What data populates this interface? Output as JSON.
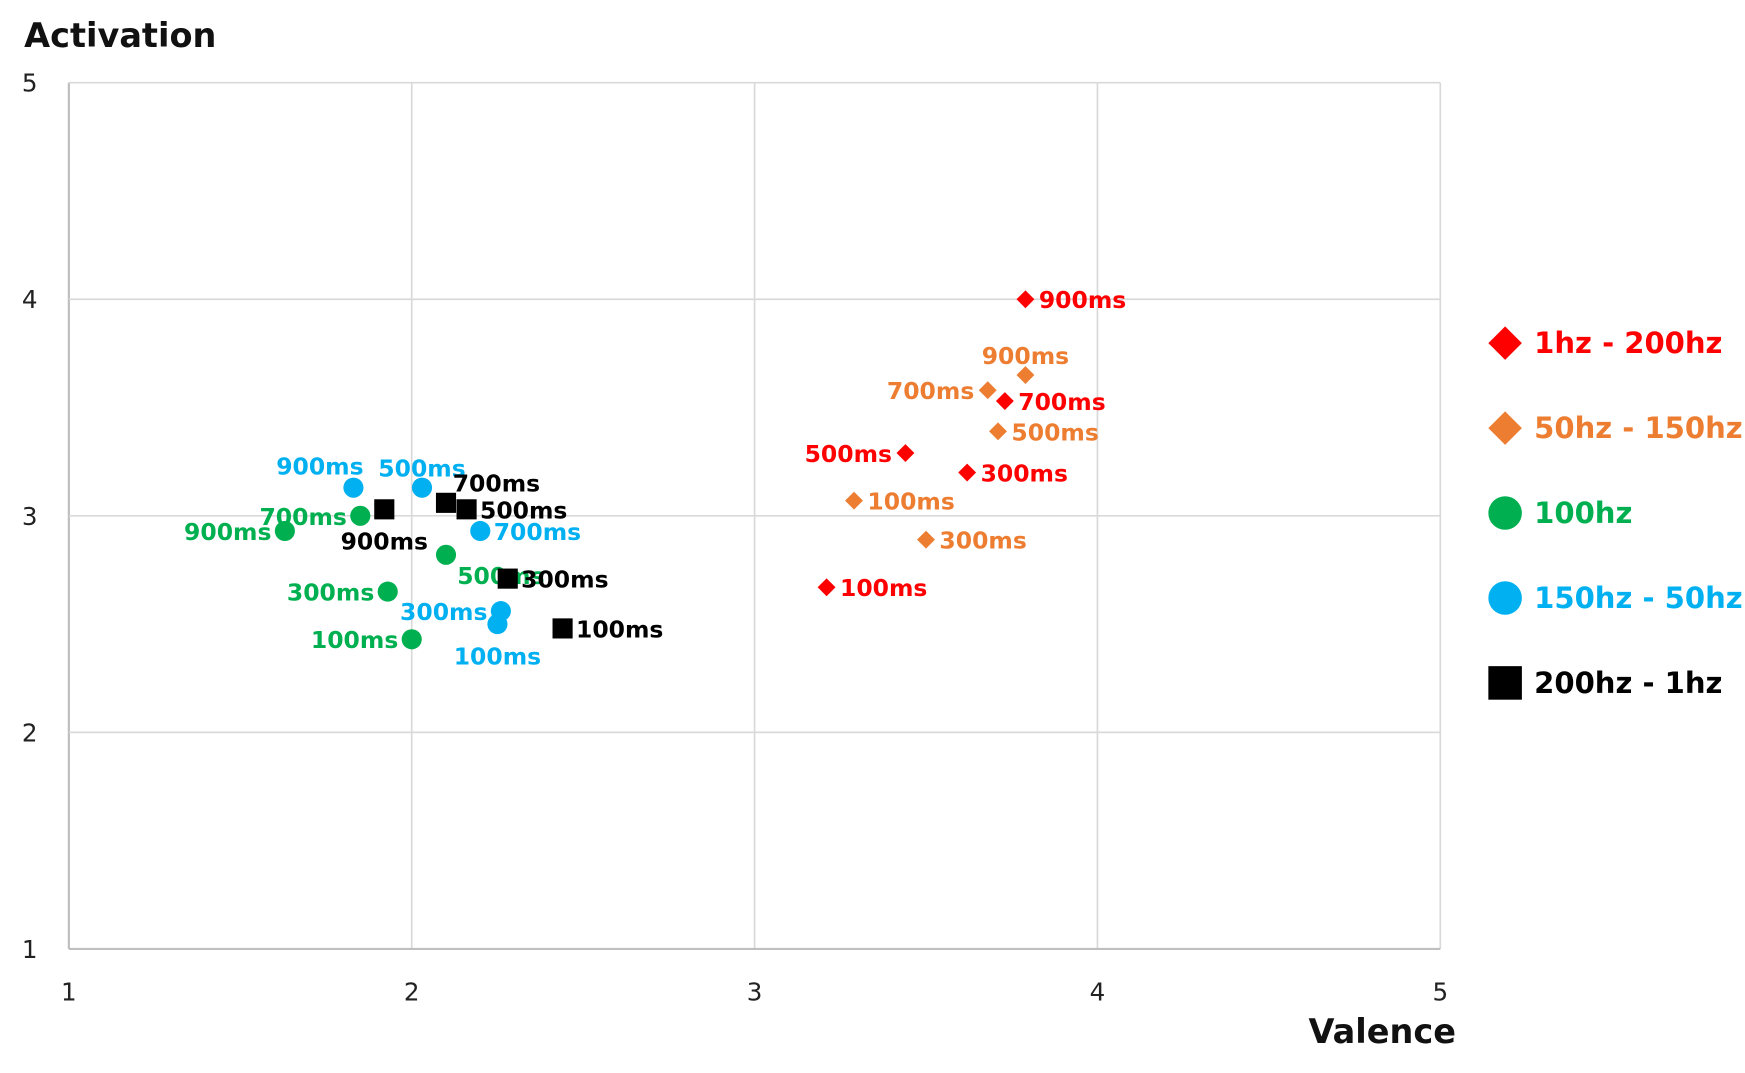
{
  "chart_data": {
    "type": "scatter",
    "title": "",
    "xlabel": "Valence",
    "ylabel": "Activation",
    "xlim": [
      1,
      5
    ],
    "ylim": [
      1,
      5
    ],
    "xticks": [
      "1",
      "2",
      "3",
      "4",
      "5"
    ],
    "yticks": [
      "1",
      "2",
      "3",
      "4",
      "5"
    ],
    "grid": true,
    "legend_placement": "right",
    "series": [
      {
        "name": "1hz - 200hz",
        "color": "#ff0000",
        "marker": "diamond",
        "points": [
          {
            "x": 3.79,
            "y": 4.0,
            "label": "900ms",
            "pos": "right"
          },
          {
            "x": 3.73,
            "y": 3.53,
            "label": "700ms",
            "pos": "right"
          },
          {
            "x": 3.44,
            "y": 3.29,
            "label": "500ms",
            "pos": "left"
          },
          {
            "x": 3.62,
            "y": 3.2,
            "label": "300ms",
            "pos": "right"
          },
          {
            "x": 3.21,
            "y": 2.67,
            "label": "100ms",
            "pos": "right"
          }
        ]
      },
      {
        "name": "50hz - 150hz",
        "color": "#ed7d31",
        "marker": "diamond",
        "points": [
          {
            "x": 3.79,
            "y": 3.65,
            "label": "900ms",
            "pos": "above"
          },
          {
            "x": 3.68,
            "y": 3.58,
            "label": "700ms",
            "pos": "left"
          },
          {
            "x": 3.71,
            "y": 3.39,
            "label": "500ms",
            "pos": "right"
          },
          {
            "x": 3.29,
            "y": 3.07,
            "label": "100ms",
            "pos": "right"
          },
          {
            "x": 3.5,
            "y": 2.89,
            "label": "300ms",
            "pos": "right"
          }
        ]
      },
      {
        "name": "100hz",
        "color": "#00b050",
        "marker": "circle",
        "points": [
          {
            "x": 1.63,
            "y": 2.93,
            "label": "900ms",
            "pos": "left"
          },
          {
            "x": 1.85,
            "y": 3.0,
            "label": "700ms",
            "pos": "left"
          },
          {
            "x": 2.1,
            "y": 2.82,
            "label": "500ms",
            "pos": "right-below"
          },
          {
            "x": 1.93,
            "y": 2.65,
            "label": "300ms",
            "pos": "left"
          },
          {
            "x": 2.0,
            "y": 2.43,
            "label": "100ms",
            "pos": "left"
          }
        ]
      },
      {
        "name": "150hz - 50hz",
        "color": "#00b0f0",
        "marker": "circle",
        "points": [
          {
            "x": 1.83,
            "y": 3.13,
            "label": "900ms",
            "pos": "above-left"
          },
          {
            "x": 2.03,
            "y": 3.13,
            "label": "500ms",
            "pos": "above"
          },
          {
            "x": 2.2,
            "y": 2.93,
            "label": "700ms",
            "pos": "right"
          },
          {
            "x": 2.26,
            "y": 2.56,
            "label": "300ms",
            "pos": "left"
          },
          {
            "x": 2.25,
            "y": 2.5,
            "label": "100ms",
            "pos": "below"
          }
        ]
      },
      {
        "name": "200hz - 1hz",
        "color": "#000000",
        "marker": "square",
        "points": [
          {
            "x": 1.92,
            "y": 3.03,
            "label": "900ms",
            "pos": "below"
          },
          {
            "x": 2.1,
            "y": 3.06,
            "label": "700ms",
            "pos": "above-right"
          },
          {
            "x": 2.16,
            "y": 3.03,
            "label": "500ms",
            "pos": "right"
          },
          {
            "x": 2.28,
            "y": 2.71,
            "label": "300ms",
            "pos": "right"
          },
          {
            "x": 2.44,
            "y": 2.48,
            "label": "100ms",
            "pos": "right"
          }
        ]
      }
    ]
  }
}
